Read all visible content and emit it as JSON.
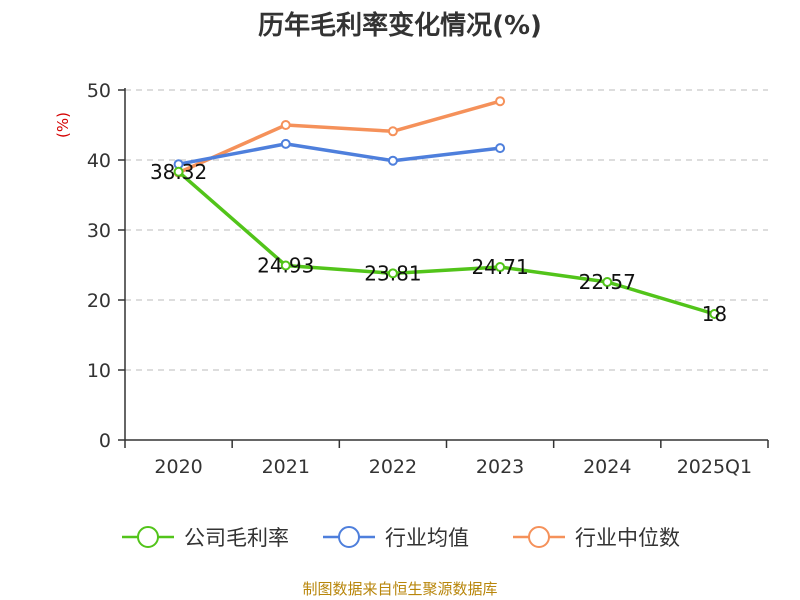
{
  "chart_data": {
    "type": "line",
    "title": "历年毛利率变化情况(%)",
    "ylabel": "(%)",
    "xlabel": "",
    "categories": [
      "2020",
      "2021",
      "2022",
      "2023",
      "2024",
      "2025Q1"
    ],
    "ylim": [
      0,
      50
    ],
    "yticks": [
      0,
      10,
      20,
      30,
      40,
      50
    ],
    "grid": "horizontal-dashed",
    "legend_position": "bottom",
    "series": [
      {
        "name": "公司毛利率",
        "color": "#52c41a",
        "values": [
          38.32,
          24.93,
          23.81,
          24.71,
          22.57,
          18
        ],
        "labels": [
          "38.32",
          "24.93",
          "23.81",
          "24.71",
          "22.57",
          "18"
        ]
      },
      {
        "name": "行业均值",
        "color": "#4e7fdc",
        "values": [
          39.4,
          42.3,
          39.9,
          41.7,
          null,
          null
        ]
      },
      {
        "name": "行业中位数",
        "color": "#f5915a",
        "values": [
          38.2,
          45.0,
          44.1,
          48.4,
          null,
          null
        ]
      }
    ]
  },
  "footer": {
    "source": "制图数据来自恒生聚源数据库"
  }
}
